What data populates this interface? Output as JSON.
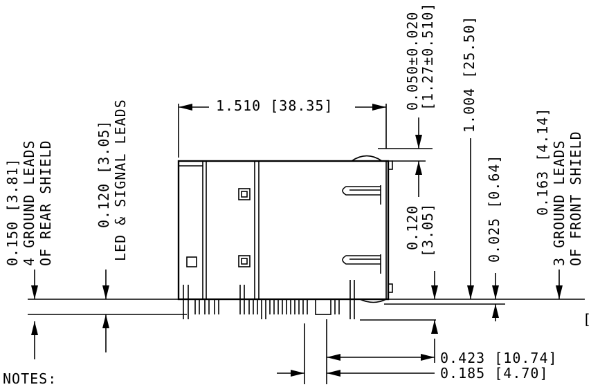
{
  "dimensions": {
    "rear_shield": {
      "line1": "0.150 [3.81]",
      "line2": "4 GROUND LEADS",
      "line3": "OF REAR SHIELD"
    },
    "led_signal": {
      "line1": "0.120 [3.05]",
      "line2": "LED & SIGNAL LEADS"
    },
    "width": "1.510 [38.35]",
    "tolerance": {
      "line1": "0.050±0.020",
      "line2": "[1.27±0.510]"
    },
    "height": "1.004 [25.50]",
    "tab": {
      "line1": "0.120",
      "line2": "[3.05]"
    },
    "offset": "0.025 [0.64]",
    "front_shield": {
      "line1": "0.163 [4.14]",
      "line2": "3 GROUND LEADS",
      "line3": "OF FRONT SHIELD"
    },
    "lead_1": "0.423 [10.74]",
    "lead_2": "0.185 [4.70]"
  },
  "notes_label": "NOTES:",
  "edge_mark": "["
}
